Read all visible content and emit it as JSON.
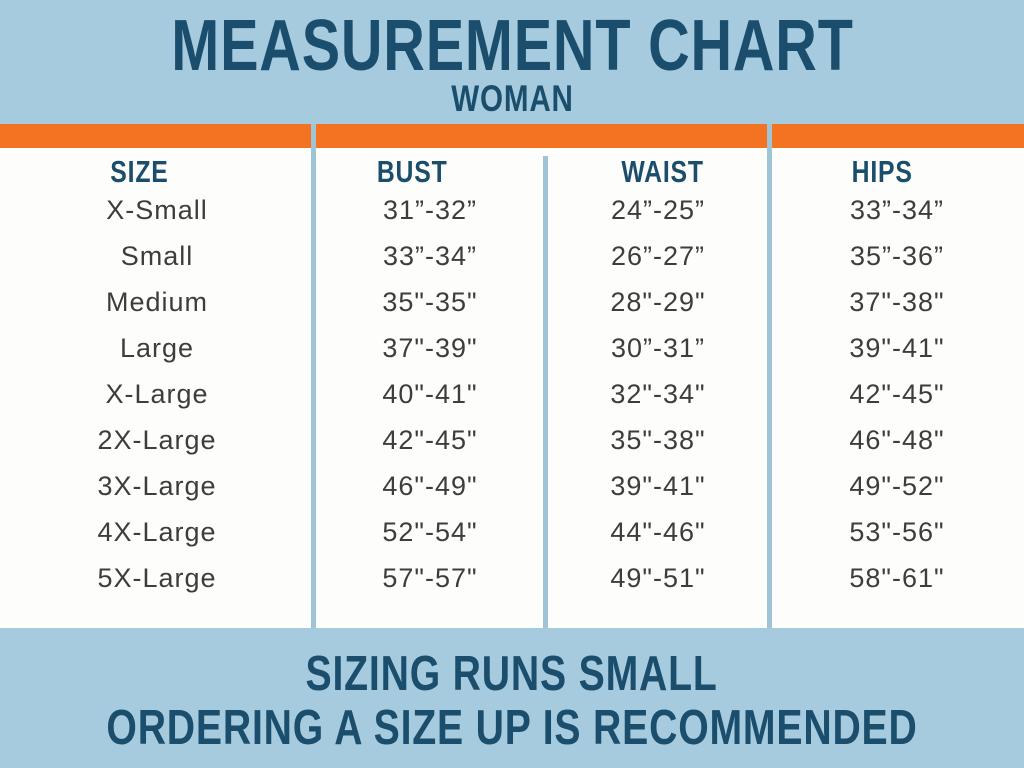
{
  "title": "MEASUREMENT CHART",
  "subtitle": "WOMAN",
  "footer": {
    "line1": "SIZING RUNS SMALL",
    "line2": "ORDERING A SIZE UP IS RECOMMENDED"
  },
  "colors": {
    "background_blue": "#a6cbde",
    "accent_orange": "#f47322",
    "heading_teal": "#1b4e6d",
    "panel_white": "#fdfdfc",
    "body_text": "#3d3d3d",
    "divider_blue": "#9fc4d6"
  },
  "chart_data": {
    "type": "table",
    "title": "MEASUREMENT CHART",
    "subtitle": "WOMAN",
    "columns": [
      "SIZE",
      "BUST",
      "WAIST",
      "HIPS"
    ],
    "rows": [
      [
        "X-Small",
        "31”-32”",
        "24”-25”",
        "33”-34”"
      ],
      [
        "Small",
        "33”-34”",
        "26”-27”",
        "35”-36”"
      ],
      [
        "Medium",
        "35\"-35\"",
        "28\"-29\"",
        "37\"-38\""
      ],
      [
        "Large",
        "37\"-39\"",
        "30”-31”",
        "39\"-41\""
      ],
      [
        "X-Large",
        "40\"-41\"",
        "32\"-34\"",
        "42\"-45\""
      ],
      [
        "2X-Large",
        "42\"-45\"",
        "35\"-38\"",
        "46\"-48\""
      ],
      [
        "3X-Large",
        "46\"-49\"",
        "39\"-41\"",
        "49\"-52\""
      ],
      [
        "4X-Large",
        "52\"-54\"",
        "44\"-46\"",
        "53\"-56\""
      ],
      [
        "5X-Large",
        "57\"-57\"",
        "49\"-51\"",
        "58\"-61\""
      ]
    ],
    "notes": [
      "SIZING RUNS SMALL",
      "ORDERING A SIZE UP IS RECOMMENDED"
    ]
  }
}
